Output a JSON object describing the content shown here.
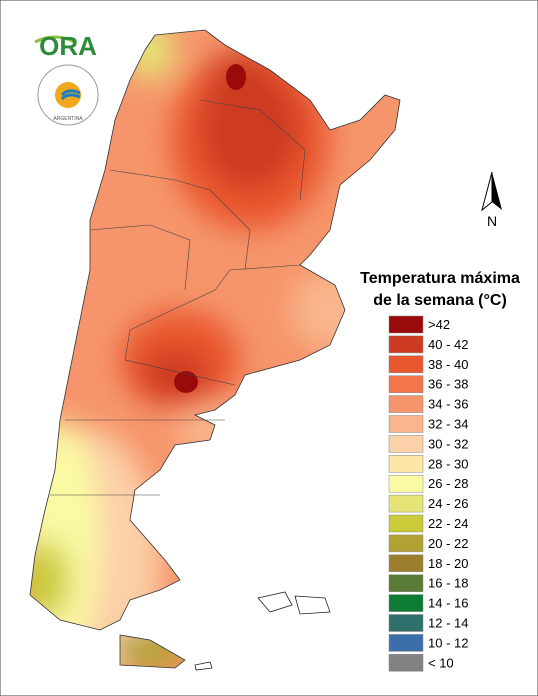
{
  "logo": {
    "text": "ORA",
    "seal": "ARGENTINA"
  },
  "north_label": "N",
  "legend": {
    "title": [
      "Temperatura máxima",
      "de la semana (°C)"
    ],
    "items": [
      {
        "label": ">42",
        "color": "#9b0a0a"
      },
      {
        "label": "40 - 42",
        "color": "#cc3a22"
      },
      {
        "label": "38 - 40",
        "color": "#e9572e"
      },
      {
        "label": "36 - 38",
        "color": "#f2764a"
      },
      {
        "label": "34 - 36",
        "color": "#f6956b"
      },
      {
        "label": "32 - 34",
        "color": "#f9b58d"
      },
      {
        "label": "30 - 32",
        "color": "#fcd0a8"
      },
      {
        "label": "28 - 30",
        "color": "#fde6a6"
      },
      {
        "label": "26 - 28",
        "color": "#fbfaa4"
      },
      {
        "label": "24 - 26",
        "color": "#e4e477"
      },
      {
        "label": "22 - 24",
        "color": "#cbca38"
      },
      {
        "label": "20 - 22",
        "color": "#b2a233"
      },
      {
        "label": "18 - 20",
        "color": "#9b7f2e"
      },
      {
        "label": "16 - 18",
        "color": "#5a7b36"
      },
      {
        "label": "14 - 16",
        "color": "#0d7b34"
      },
      {
        "label": "12 - 14",
        "color": "#2f6f6c"
      },
      {
        "label": "10 - 12",
        "color": "#3c6fa9"
      },
      {
        "label": "< 10",
        "color": "#828282"
      }
    ]
  }
}
